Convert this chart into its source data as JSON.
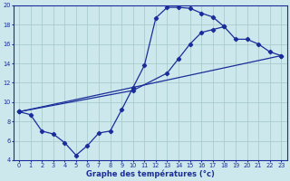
{
  "xlabel": "Graphe des températures (°c)",
  "bg_color": "#cce8ec",
  "grid_color": "#aacccc",
  "line_color": "#1a2d9a",
  "xlim": [
    -0.5,
    23.5
  ],
  "ylim": [
    4,
    20
  ],
  "xtick_labels": [
    "0",
    "1",
    "2",
    "3",
    "4",
    "5",
    "6",
    "7",
    "8",
    "9",
    "10",
    "11",
    "12",
    "13",
    "14",
    "15",
    "16",
    "17",
    "18",
    "19",
    "20",
    "21",
    "22",
    "23"
  ],
  "xtick_pos": [
    0,
    1,
    2,
    3,
    4,
    5,
    6,
    7,
    8,
    9,
    10,
    11,
    12,
    13,
    14,
    15,
    16,
    17,
    18,
    19,
    20,
    21,
    22,
    23
  ],
  "ytick_pos": [
    4,
    6,
    8,
    10,
    12,
    14,
    16,
    18,
    20
  ],
  "line1_x": [
    0,
    1,
    2,
    3,
    4,
    5,
    6,
    7,
    8,
    9,
    10,
    11,
    12,
    13,
    14,
    15,
    16,
    17,
    18
  ],
  "line1_y": [
    9.0,
    8.7,
    7.0,
    6.7,
    5.8,
    4.5,
    5.5,
    6.8,
    7.0,
    9.2,
    11.5,
    13.8,
    18.7,
    19.8,
    19.8,
    19.7,
    19.2,
    18.8,
    17.8
  ],
  "line2_x": [
    0,
    23
  ],
  "line2_y": [
    9.0,
    14.8
  ],
  "line3_x": [
    0,
    10,
    13,
    14,
    15,
    16,
    17,
    18,
    19,
    20,
    21,
    22,
    23
  ],
  "line3_y": [
    9.0,
    11.2,
    13.0,
    14.5,
    16.0,
    17.2,
    17.5,
    17.8,
    16.5,
    16.5,
    16.0,
    15.2,
    14.8
  ]
}
